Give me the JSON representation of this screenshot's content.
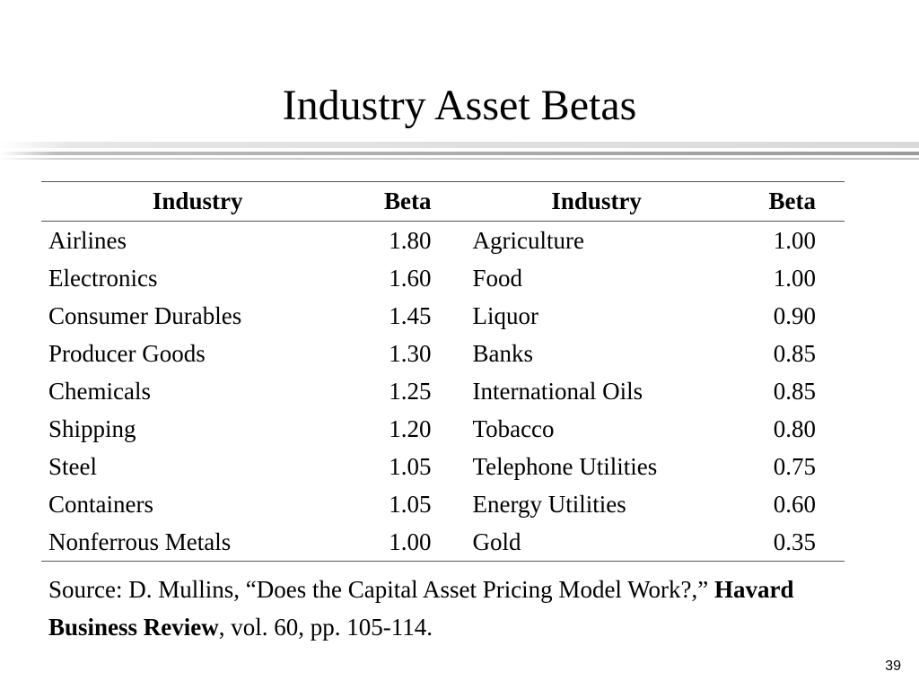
{
  "slide": {
    "title": "Industry Asset Betas",
    "page_number": "39"
  },
  "table": {
    "headers": [
      "Industry",
      "Beta",
      "Industry",
      "Beta"
    ],
    "rows": [
      [
        "Airlines",
        "1.80",
        "Agriculture",
        "1.00"
      ],
      [
        "Electronics",
        "1.60",
        "Food",
        "1.00"
      ],
      [
        "Consumer Durables",
        "1.45",
        "Liquor",
        "0.90"
      ],
      [
        "Producer Goods",
        "1.30",
        "Banks",
        "0.85"
      ],
      [
        "Chemicals",
        "1.25",
        "International Oils",
        "0.85"
      ],
      [
        "Shipping",
        "1.20",
        "Tobacco",
        "0.80"
      ],
      [
        "Steel",
        "1.05",
        "Telephone Utilities",
        "0.75"
      ],
      [
        "Containers",
        "1.05",
        "Energy Utilities",
        "0.60"
      ],
      [
        "Nonferrous Metals",
        "1.00",
        "Gold",
        "0.35"
      ]
    ]
  },
  "source": {
    "prefix": "Source: D. Mullins, “Does the Capital Asset Pricing Model Work?,” ",
    "journal": "Havard Business Review",
    "suffix": ", vol. 60, pp. 105-114."
  }
}
